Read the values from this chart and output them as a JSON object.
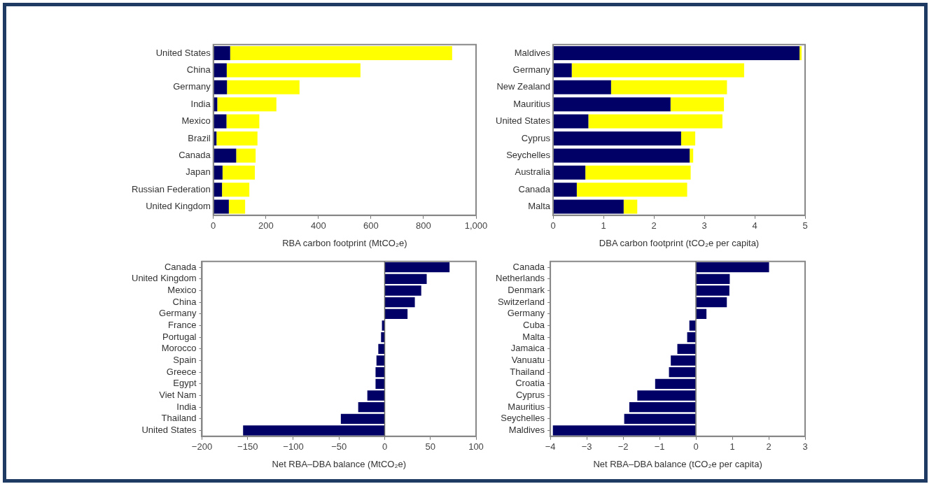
{
  "chart_data": [
    {
      "type": "bar",
      "orientation": "horizontal",
      "stacked": true,
      "xlabel": "RBA carbon footprint (MtCO₂e)",
      "categories": [
        "United States",
        "China",
        "Germany",
        "India",
        "Mexico",
        "Brazil",
        "Canada",
        "Japan",
        "Russian Federation",
        "United Kingdom"
      ],
      "series": [
        {
          "color": "#000066",
          "values": [
            64,
            51,
            52,
            15,
            50,
            12,
            87,
            35,
            33,
            59
          ]
        },
        {
          "color": "#ffff00",
          "values": [
            845,
            509,
            276,
            225,
            125,
            156,
            74,
            123,
            104,
            62
          ]
        }
      ],
      "xlim": [
        0,
        1000
      ],
      "xticks": [
        0,
        200,
        400,
        600,
        800,
        {
          "value": 1000,
          "label": "1,000"
        }
      ],
      "grid": false
    },
    {
      "type": "bar",
      "orientation": "horizontal",
      "stacked": true,
      "xlabel": "DBA carbon footprint (tCO₂e per capita)",
      "categories": [
        "Maldives",
        "Germany",
        "New Zealand",
        "Mauritius",
        "United States",
        "Cyprus",
        "Seychelles",
        "Australia",
        "Canada",
        "Malta"
      ],
      "series": [
        {
          "color": "#000066",
          "values": [
            4.89,
            0.37,
            1.15,
            2.33,
            0.7,
            2.54,
            2.71,
            0.64,
            0.47,
            1.4
          ]
        },
        {
          "color": "#ffff00",
          "values": [
            0.04,
            3.42,
            2.3,
            1.06,
            2.66,
            0.28,
            0.07,
            2.09,
            2.19,
            0.27
          ]
        }
      ],
      "xlim": [
        0,
        5
      ],
      "xticks": [
        0,
        1,
        2,
        3,
        4,
        5
      ],
      "grid": false
    },
    {
      "type": "bar",
      "orientation": "horizontal",
      "xlabel": "Net RBA–DBA balance (MtCO₂e)",
      "categories": [
        "Canada",
        "United Kingdom",
        "Mexico",
        "China",
        "Germany",
        "France",
        "Portugal",
        "Morocco",
        "Spain",
        "Greece",
        "Egypt",
        "Viet Nam",
        "India",
        "Thailand",
        "United States"
      ],
      "color": "#000066",
      "values": [
        71,
        46,
        40,
        33,
        25,
        -3,
        -4,
        -7,
        -9,
        -10,
        -10,
        -19,
        -29,
        -48,
        -155
      ],
      "xlim": [
        -200,
        100
      ],
      "xticks": [
        {
          "value": -200,
          "label": "−200"
        },
        {
          "value": -150,
          "label": "−150"
        },
        {
          "value": -100,
          "label": "−100"
        },
        {
          "value": -50,
          "label": "−50"
        },
        0,
        50,
        100
      ],
      "grid": false,
      "ref_lines": [
        {
          "axis": "x",
          "value": 0,
          "color": "#666666"
        }
      ]
    },
    {
      "type": "bar",
      "orientation": "horizontal",
      "xlabel": "Net RBA–DBA balance (tCO₂e per capita)",
      "categories": [
        "Canada",
        "Netherlands",
        "Denmark",
        "Switzerland",
        "Germany",
        "Cuba",
        "Malta",
        "Jamaica",
        "Vanuatu",
        "Thailand",
        "Croatia",
        "Cyprus",
        "Mauritius",
        "Seychelles",
        "Maldives"
      ],
      "color": "#000066",
      "values": [
        2.01,
        0.93,
        0.92,
        0.85,
        0.29,
        -0.18,
        -0.24,
        -0.51,
        -0.69,
        -0.74,
        -1.12,
        -1.61,
        -1.83,
        -1.97,
        -3.93
      ],
      "xlim": [
        -4,
        3
      ],
      "xticks": [
        {
          "value": -4,
          "label": "−4"
        },
        {
          "value": -3,
          "label": "−3"
        },
        {
          "value": -2,
          "label": "−2"
        },
        {
          "value": -1,
          "label": "−1"
        },
        0,
        1,
        2,
        3
      ],
      "grid": false,
      "ref_lines": [
        {
          "axis": "x",
          "value": 0,
          "color": "#666666"
        }
      ]
    }
  ]
}
